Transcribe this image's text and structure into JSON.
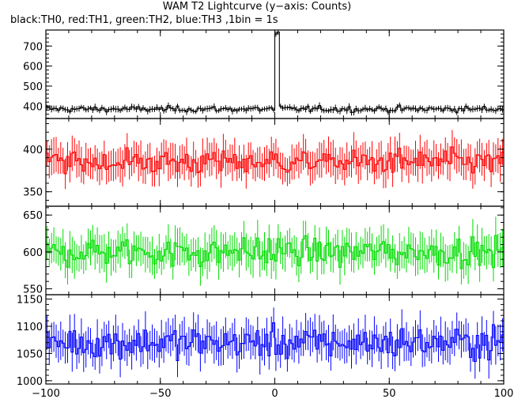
{
  "header": {
    "title": "WAM T2 Lightcurve (y−axis: Counts)",
    "subtitle": "black:TH0, red:TH1, green:TH2, blue:TH3 ,1bin = 1s"
  },
  "chart_data": {
    "type": "line",
    "style": "step with error bars",
    "xlim": [
      -100,
      100
    ],
    "x_ticks": [
      -100,
      -50,
      0,
      50,
      100
    ],
    "x_tick_labels": [
      "−100",
      "−50",
      "0",
      "50",
      "100"
    ],
    "bin_width": 1,
    "panels": [
      {
        "series": "TH0",
        "color": "#000000",
        "ylim": [
          338,
          780
        ],
        "y_ticks": [
          400,
          500,
          600,
          700
        ],
        "mean": 385,
        "noise": 12,
        "errbar": 14,
        "features": [
          {
            "x": -1,
            "value": 380
          },
          {
            "x": 0,
            "value": 760
          },
          {
            "x": 1,
            "value": 770
          },
          {
            "x": 2,
            "value": 400
          }
        ]
      },
      {
        "series": "TH1",
        "color": "#ff0000",
        "ylim": [
          333,
          436
        ],
        "y_ticks": [
          350,
          400
        ],
        "mean": 385,
        "noise": 12,
        "errbar": 18
      },
      {
        "series": "TH2",
        "color": "#00dd00",
        "ylim": [
          542,
          662
        ],
        "y_ticks": [
          550,
          600,
          650
        ],
        "mean": 600,
        "noise": 16,
        "errbar": 22
      },
      {
        "series": "TH3",
        "color": "#0000ff",
        "ylim": [
          994,
          1158
        ],
        "y_ticks": [
          1000,
          1050,
          1100,
          1150
        ],
        "mean": 1070,
        "noise": 24,
        "errbar": 30
      }
    ]
  }
}
